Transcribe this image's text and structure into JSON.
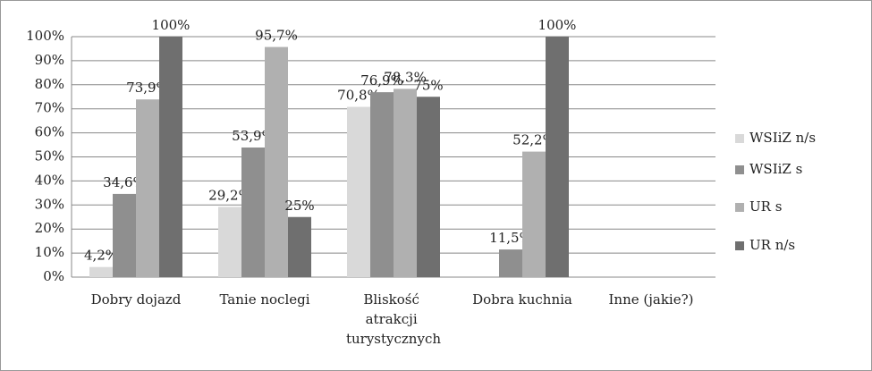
{
  "chart_data": {
    "type": "bar",
    "categories": [
      "Dobry dojazd",
      "Tanie noclegi",
      "Bliskość atrakcji turystycznych",
      "Dobra kuchnia",
      "Inne (jakie?)"
    ],
    "series": [
      {
        "name": "WSIiZ n/s",
        "color": "#d9d9d9",
        "values": [
          4.2,
          29.2,
          70.8,
          null,
          null
        ],
        "value_labels": [
          "4,2%",
          "29,2%",
          "70,8%",
          null,
          null
        ]
      },
      {
        "name": "WSIiZ s",
        "color": "#8f8f8f",
        "values": [
          34.6,
          53.9,
          76.9,
          11.5,
          null
        ],
        "value_labels": [
          "34,6%",
          "53,9%",
          "76,9%",
          "11,5%",
          null
        ]
      },
      {
        "name": "UR s",
        "color": "#b0b0b0",
        "values": [
          73.9,
          95.7,
          78.3,
          52.2,
          null
        ],
        "value_labels": [
          "73,9%",
          "95,7%",
          "78,3%",
          "52,2%",
          null
        ]
      },
      {
        "name": "UR n/s",
        "color": "#6f6f6f",
        "values": [
          100,
          25,
          75,
          100,
          null
        ],
        "value_labels": [
          "100%",
          "25%",
          "75%",
          "100%",
          null
        ]
      }
    ],
    "ylim": [
      0,
      100
    ],
    "yticks": [
      {
        "value": 0,
        "label": "0%"
      },
      {
        "value": 10,
        "label": "10%"
      },
      {
        "value": 20,
        "label": "20%"
      },
      {
        "value": 30,
        "label": "30%"
      },
      {
        "value": 40,
        "label": "40%"
      },
      {
        "value": 50,
        "label": "50%"
      },
      {
        "value": 60,
        "label": "60%"
      },
      {
        "value": 70,
        "label": "70%"
      },
      {
        "value": 80,
        "label": "80%"
      },
      {
        "value": 90,
        "label": "90%"
      },
      {
        "value": 100,
        "label": "100%"
      }
    ],
    "grid": true,
    "legend": "right"
  }
}
